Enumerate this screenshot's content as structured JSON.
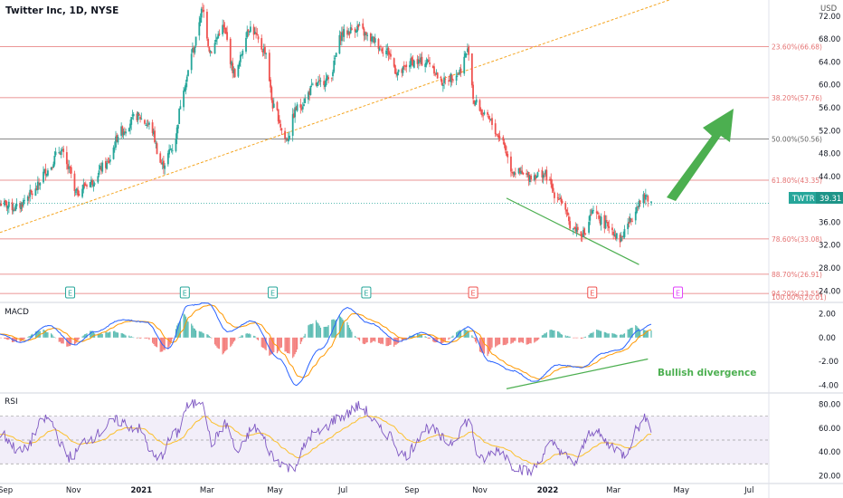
{
  "chart_data": {
    "type": "candlestick",
    "symbol": "Twitter Inc, 1D, NYSE",
    "currency": "USD",
    "price_axis": {
      "ticks": [
        24,
        28,
        32,
        36,
        40,
        44,
        48,
        52,
        56,
        60,
        64,
        68,
        72
      ],
      "range": [
        22.3,
        74.2
      ]
    },
    "time_axis": {
      "labels": [
        "Sep",
        "Nov",
        "2021",
        "Mar",
        "May",
        "Jul",
        "Sep",
        "Nov",
        "2022",
        "Mar",
        "May",
        "Jul"
      ]
    },
    "last_price": {
      "label": "TWTR",
      "value": "39.31",
      "price": 39.31
    },
    "fib_levels": [
      {
        "label": "23.60%(66.68)",
        "price": 66.68
      },
      {
        "label": "38.20%(57.76)",
        "price": 57.76
      },
      {
        "label": "50.00%(50.56)",
        "price": 50.56
      },
      {
        "label": "61.80%(43.35)",
        "price": 43.35
      },
      {
        "label": "78.60%(33.08)",
        "price": 33.08
      },
      {
        "label": "88.70%(26.91)",
        "price": 26.91
      },
      {
        "label": "94.20%(23.55)",
        "price": 23.55
      },
      {
        "label": "100.00%(20.01)",
        "price": 20.01
      }
    ],
    "earnings_markers": [
      {
        "label": "E",
        "date": "2020-10-29",
        "kind": "beat"
      },
      {
        "label": "E",
        "date": "2021-02-09",
        "kind": "beat"
      },
      {
        "label": "E",
        "date": "2021-04-29",
        "kind": "beat"
      },
      {
        "label": "E",
        "date": "2021-07-22",
        "kind": "beat"
      },
      {
        "label": "E",
        "date": "2021-10-26",
        "kind": "miss"
      },
      {
        "label": "E",
        "date": "2022-02-10",
        "kind": "miss"
      },
      {
        "label": "E",
        "date": "2022-04-28",
        "kind": "upcoming"
      }
    ],
    "price_path": [
      [
        "2020-08-27",
        39.3
      ],
      [
        "2020-09-10",
        38.5
      ],
      [
        "2020-09-25",
        41
      ],
      [
        "2020-10-08",
        45
      ],
      [
        "2020-10-20",
        48.5
      ],
      [
        "2020-10-29",
        45
      ],
      [
        "2020-11-02",
        41
      ],
      [
        "2020-11-16",
        43
      ],
      [
        "2020-11-30",
        46
      ],
      [
        "2020-12-14",
        52
      ],
      [
        "2020-12-28",
        54.5
      ],
      [
        "2021-01-08",
        53
      ],
      [
        "2021-01-20",
        46
      ],
      [
        "2021-01-29",
        49
      ],
      [
        "2021-02-09",
        60
      ],
      [
        "2021-02-16",
        66
      ],
      [
        "2021-02-25",
        73
      ],
      [
        "2021-03-04",
        66
      ],
      [
        "2021-03-15",
        70
      ],
      [
        "2021-03-26",
        62
      ],
      [
        "2021-04-08",
        70
      ],
      [
        "2021-04-22",
        66
      ],
      [
        "2021-04-30",
        56
      ],
      [
        "2021-05-11",
        50.5
      ],
      [
        "2021-05-21",
        56
      ],
      [
        "2021-06-07",
        60
      ],
      [
        "2021-06-18",
        61
      ],
      [
        "2021-07-01",
        69
      ],
      [
        "2021-07-14",
        70
      ],
      [
        "2021-07-26",
        68
      ],
      [
        "2021-08-09",
        66
      ],
      [
        "2021-08-20",
        62
      ],
      [
        "2021-09-01",
        64
      ],
      [
        "2021-09-16",
        64
      ],
      [
        "2021-09-28",
        60.5
      ],
      [
        "2021-10-12",
        62
      ],
      [
        "2021-10-22",
        66
      ],
      [
        "2021-10-27",
        57
      ],
      [
        "2021-11-08",
        54
      ],
      [
        "2021-11-19",
        51
      ],
      [
        "2021-12-01",
        45
      ],
      [
        "2021-12-14",
        44
      ],
      [
        "2021-12-28",
        44.5
      ],
      [
        "2022-01-10",
        40.5
      ],
      [
        "2022-01-24",
        35
      ],
      [
        "2022-02-03",
        34
      ],
      [
        "2022-02-10",
        37.5
      ],
      [
        "2022-02-24",
        35.5
      ],
      [
        "2022-03-07",
        33
      ],
      [
        "2022-03-15",
        36
      ],
      [
        "2022-03-24",
        39.5
      ],
      [
        "2022-03-31",
        40.5
      ],
      [
        "2022-04-04",
        39.31
      ]
    ],
    "macd": {
      "title": "MACD",
      "ticks": [
        2.0,
        0.0,
        -2.0,
        -4.0
      ],
      "range": [
        -4.5,
        2.8
      ],
      "path": [
        [
          "2020-08-27",
          0.3
        ],
        [
          "2020-09-15",
          -0.4
        ],
        [
          "2020-10-10",
          1.0
        ],
        [
          "2020-11-02",
          -0.6
        ],
        [
          "2020-11-20",
          0.5
        ],
        [
          "2020-12-15",
          1.5
        ],
        [
          "2021-01-05",
          1.3
        ],
        [
          "2021-01-25",
          -0.9
        ],
        [
          "2021-02-12",
          2.7
        ],
        [
          "2021-03-01",
          2.9
        ],
        [
          "2021-03-20",
          0.5
        ],
        [
          "2021-04-10",
          1.4
        ],
        [
          "2021-05-05",
          -1.8
        ],
        [
          "2021-05-20",
          -4.0
        ],
        [
          "2021-06-10",
          -1.0
        ],
        [
          "2021-07-05",
          2.5
        ],
        [
          "2021-07-25",
          1.2
        ],
        [
          "2021-08-20",
          -0.3
        ],
        [
          "2021-09-10",
          0.4
        ],
        [
          "2021-10-01",
          -0.6
        ],
        [
          "2021-10-22",
          0.9
        ],
        [
          "2021-11-10",
          -2.0
        ],
        [
          "2021-12-01",
          -2.8
        ],
        [
          "2021-12-20",
          -3.7
        ],
        [
          "2022-01-10",
          -2.3
        ],
        [
          "2022-02-01",
          -2.5
        ],
        [
          "2022-02-20",
          -1.3
        ],
        [
          "2022-03-07",
          -1.0
        ],
        [
          "2022-03-24",
          0.6
        ],
        [
          "2022-04-04",
          1.1
        ]
      ]
    },
    "rsi": {
      "title": "RSI",
      "ticks": [
        80.0,
        60.0,
        40.0,
        20.0
      ],
      "range": [
        15,
        88
      ],
      "bands": [
        70,
        50,
        30
      ],
      "path": [
        [
          "2020-08-27",
          55
        ],
        [
          "2020-09-15",
          40
        ],
        [
          "2020-10-08",
          68
        ],
        [
          "2020-10-29",
          36
        ],
        [
          "2020-11-16",
          52
        ],
        [
          "2020-12-10",
          66
        ],
        [
          "2020-12-28",
          60
        ],
        [
          "2021-01-15",
          34
        ],
        [
          "2021-02-01",
          55
        ],
        [
          "2021-02-12",
          78
        ],
        [
          "2021-02-25",
          84
        ],
        [
          "2021-03-05",
          48
        ],
        [
          "2021-03-18",
          63
        ],
        [
          "2021-03-28",
          40
        ],
        [
          "2021-04-12",
          60
        ],
        [
          "2021-05-05",
          32
        ],
        [
          "2021-05-15",
          26
        ],
        [
          "2021-06-05",
          55
        ],
        [
          "2021-07-01",
          70
        ],
        [
          "2021-07-15",
          78
        ],
        [
          "2021-08-10",
          55
        ],
        [
          "2021-08-25",
          37
        ],
        [
          "2021-09-15",
          60
        ],
        [
          "2021-10-05",
          48
        ],
        [
          "2021-10-22",
          66
        ],
        [
          "2021-11-01",
          33
        ],
        [
          "2021-11-18",
          42
        ],
        [
          "2021-12-03",
          28
        ],
        [
          "2021-12-15",
          23
        ],
        [
          "2022-01-05",
          46
        ],
        [
          "2022-01-25",
          31
        ],
        [
          "2022-02-10",
          58
        ],
        [
          "2022-02-28",
          45
        ],
        [
          "2022-03-10",
          38
        ],
        [
          "2022-03-25",
          62
        ],
        [
          "2022-04-01",
          71
        ],
        [
          "2022-04-04",
          60
        ]
      ]
    }
  },
  "annotations": {
    "divergence_label": "Bullish divergence"
  },
  "colors": {
    "up": "#26a69a",
    "down": "#ef5350",
    "fib": "#e57373",
    "fib_mid": "#616161",
    "trend": "#f5a623",
    "green": "#4caf50",
    "macd": "#2962ff",
    "signal": "#ff9800",
    "rsi": "#7e57c2",
    "rsi_ma": "#fbc02d",
    "rsi_band": "#ede7f6"
  }
}
